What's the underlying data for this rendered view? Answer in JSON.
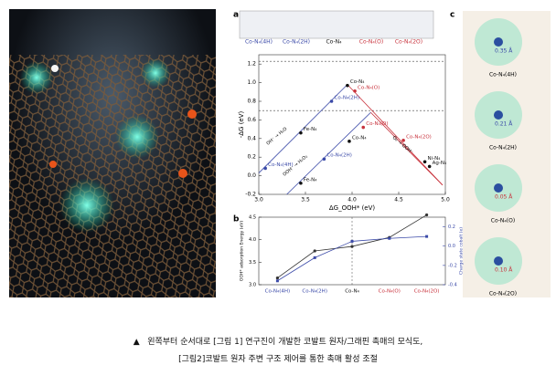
{
  "figure": {
    "panel_labels": [
      "a",
      "b",
      "c"
    ],
    "structures": [
      "Co-N₄(4H)",
      "Co-N₄(2H)",
      "Co-N₄",
      "Co-N₄(O)",
      "Co-N₄(2O)"
    ],
    "chart_a": {
      "type": "scatter",
      "xlabel": "ΔG_OOH* (eV)",
      "ylabel": "-ΔG (eV)",
      "xlim": [
        3.0,
        5.0
      ],
      "ylim": [
        -0.2,
        1.3
      ],
      "xticks": [
        {
          "value": 3.0,
          "label": "3.0"
        },
        3.5,
        {
          "value": 4.0,
          "label": "4.0"
        },
        4.5,
        {
          "value": 5.0,
          "label": "5.0"
        }
      ],
      "yticks": [
        -0.2,
        {
          "value": 0.0,
          "label": "0.0"
        },
        0.2,
        0.4,
        0.6,
        0.8,
        {
          "value": 1.0,
          "label": "1.0"
        },
        1.2
      ],
      "hlines": [
        1.23,
        0.7
      ],
      "lines": [
        {
          "color": "#3b4aa8",
          "x": [
            3.0,
            3.95
          ],
          "y": [
            0.03,
            0.98
          ]
        },
        {
          "color": "#3b4aa8",
          "x": [
            3.3,
            4.2
          ],
          "y": [
            -0.2,
            0.68
          ]
        },
        {
          "color": "#c8323c",
          "x": [
            3.95,
            4.97
          ],
          "y": [
            0.98,
            -0.1
          ]
        },
        {
          "color": "#c8323c",
          "x": [
            4.2,
            4.97
          ],
          "y": [
            0.68,
            -0.1
          ]
        }
      ],
      "points": [
        {
          "x": 3.07,
          "y": 0.08,
          "label": "Co-N₄(4H)",
          "color": "#3b4aa8"
        },
        {
          "x": 3.45,
          "y": 0.46,
          "label": "Fe-N₄",
          "color": "#111"
        },
        {
          "x": 3.78,
          "y": 0.8,
          "label": "Co-N₄(2H)",
          "color": "#3b4aa8"
        },
        {
          "x": 3.95,
          "y": 0.97,
          "label": "Co-N₄",
          "color": "#111"
        },
        {
          "x": 4.03,
          "y": 0.91,
          "label": "Co-N₄(O)",
          "color": "#c8323c"
        },
        {
          "x": 3.45,
          "y": -0.08,
          "label": "Fe-N₄",
          "color": "#111"
        },
        {
          "x": 3.7,
          "y": 0.18,
          "label": "Co-N₄(2H)",
          "color": "#3b4aa8"
        },
        {
          "x": 3.97,
          "y": 0.37,
          "label": "Co-N₄",
          "color": "#111"
        },
        {
          "x": 4.12,
          "y": 0.52,
          "label": "Co-N₄(O)",
          "color": "#c8323c"
        },
        {
          "x": 4.55,
          "y": 0.38,
          "label": "Co-N₄(2O)",
          "color": "#c8323c"
        },
        {
          "x": 4.78,
          "y": 0.15,
          "label": "Ni-N₄",
          "color": "#111"
        },
        {
          "x": 4.83,
          "y": 0.1,
          "label": "Ag-N₄",
          "color": "#111"
        }
      ],
      "annotations": [
        "OH⁻ → H₂O",
        "OOH⁻ → H₂O₂",
        "O₂ → OOH⁻"
      ]
    },
    "chart_b": {
      "type": "line",
      "ylabel": "OOH* adsorption Energy (eV)",
      "y2label": "Charge state cobalt (e)",
      "categories": [
        "Co-N₄(4H)",
        "Co-N₄(2H)",
        "Co-N₄",
        "Co-N₄(O)",
        "Co-N₄(2O)"
      ],
      "category_colors": [
        "#3b4aa8",
        "#3b4aa8",
        "#111",
        "#c8323c",
        "#c8323c"
      ],
      "ylim": [
        3.0,
        4.5
      ],
      "yticks": [
        {
          "value": 3.0,
          "label": "3.0"
        },
        3.5,
        {
          "value": 4.0,
          "label": "4.0"
        },
        4.5
      ],
      "y2lim": [
        -0.4,
        0.3
      ],
      "y2ticks": [
        0.2,
        {
          "value": 0.0,
          "label": "0.0"
        },
        -0.2,
        -0.4
      ],
      "series": [
        {
          "color": "#333",
          "values": [
            3.15,
            3.75,
            3.85,
            4.05,
            4.55
          ]
        },
        {
          "color": "#3b4aa8",
          "axis": "y2",
          "values": [
            -0.36,
            -0.12,
            0.05,
            0.08,
            0.1
          ]
        }
      ]
    },
    "panel_c": {
      "labels": [
        "Co-N₄(4H)",
        "Co-N₄(2H)",
        "Co-N₄(O)",
        "Co-N₄(2O)"
      ],
      "values": [
        "0.35 Å",
        "0.21 Å",
        "0.05 Å",
        "0.10 Å"
      ]
    }
  },
  "caption": {
    "marker": "▲",
    "line1": "왼쪽부터 순서대로  [그림 1] 연구진이 개발한 코발트 원자/그래핀 촉매의 모식도,",
    "line2": "[그림2]코발트 원자 주변 구조 제어를 통한 촉매 활성 조절"
  }
}
